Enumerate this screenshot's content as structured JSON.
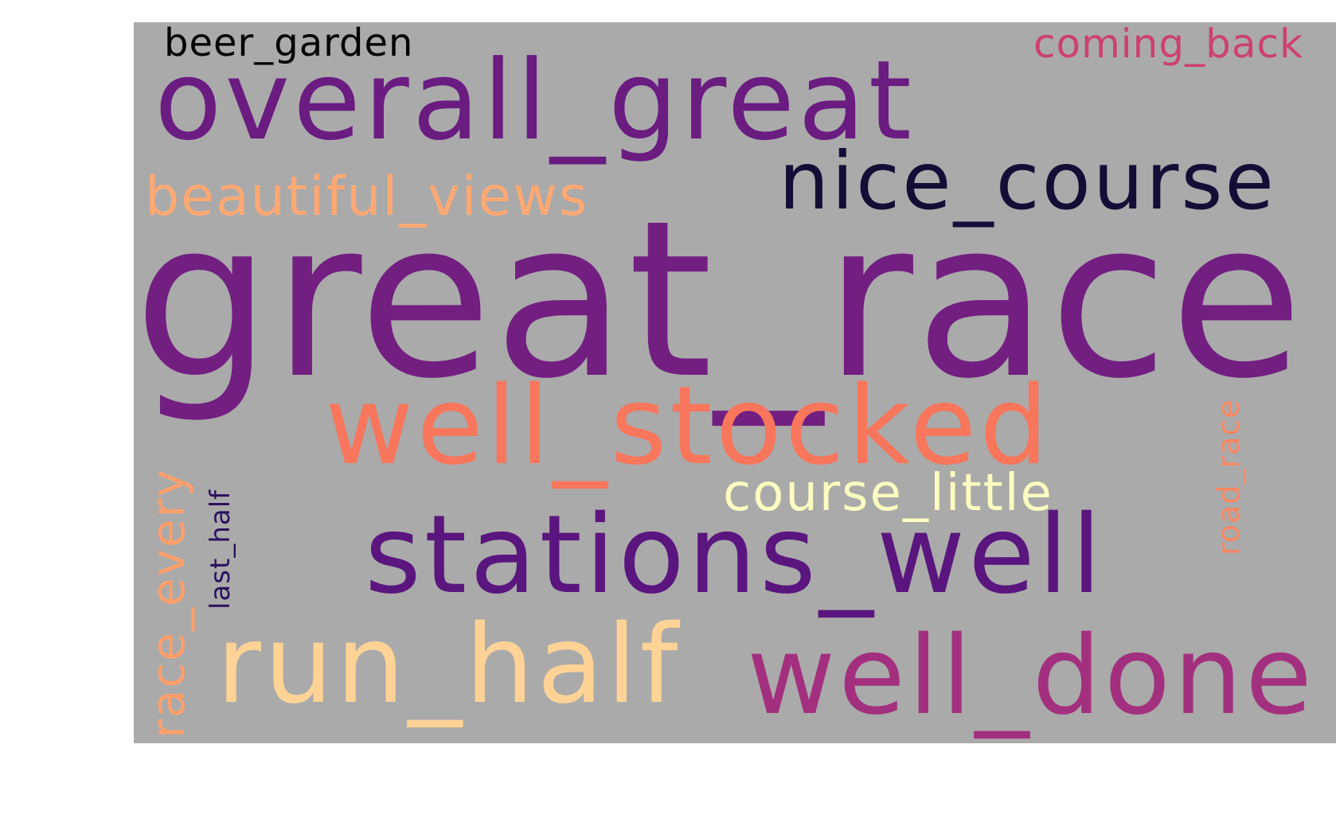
{
  "wordcloud": {
    "background": "#aaaaaa",
    "words": [
      {
        "text": "great_race",
        "color": "#721f81"
      },
      {
        "text": "overall_great",
        "color": "#6a1c81"
      },
      {
        "text": "nice_course",
        "color": "#140e36"
      },
      {
        "text": "well_stocked",
        "color": "#f8765c"
      },
      {
        "text": "stations_well",
        "color": "#5a167e"
      },
      {
        "text": "well_done",
        "color": "#a3307e"
      },
      {
        "text": "run_half",
        "color": "#fed395"
      },
      {
        "text": "beautiful_views",
        "color": "#fea873"
      },
      {
        "text": "course_little",
        "color": "#fcfdbf"
      },
      {
        "text": "beer_garden",
        "color": "#000004"
      },
      {
        "text": "coming_back",
        "color": "#cd4071"
      },
      {
        "text": "race_every",
        "color": "#fd9f6c"
      },
      {
        "text": "last_half",
        "color": "#2c115f"
      },
      {
        "text": "road_race",
        "color": "#fb8761"
      }
    ]
  }
}
